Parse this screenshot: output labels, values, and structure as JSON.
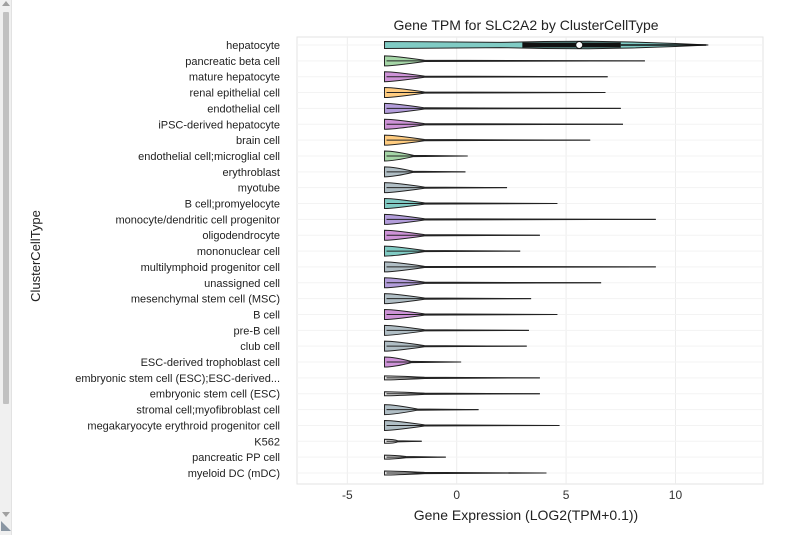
{
  "chart_data": {
    "type": "violin",
    "title": "Gene TPM for SLC2A2 by ClusterCellType",
    "xlabel": "Gene Expression (LOG2(TPM+0.1))",
    "ylabel": "ClusterCellType",
    "xlim": [
      -7.3,
      14
    ],
    "xticks": [
      -5,
      0,
      5,
      10
    ],
    "grid": true,
    "categories": [
      "hepatocyte",
      "pancreatic beta cell",
      "mature hepatocyte",
      "renal epithelial cell",
      "endothelial cell",
      "iPSC-derived hepatocyte",
      "brain cell",
      "endothelial cell;microglial cell",
      "erythroblast",
      "myotube",
      "B cell;promyelocyte",
      "monocyte/dendritic cell progenitor",
      "oligodendrocyte",
      "mononuclear cell",
      "multilymphoid progenitor cell",
      "unassigned cell",
      "mesenchymal stem cell (MSC)",
      "B cell",
      "pre-B cell",
      "club cell",
      "ESC-derived trophoblast cell",
      "embryonic stem cell (ESC);ESC-derived...",
      "embryonic stem cell (ESC)",
      "stromal cell;myofibroblast cell",
      "megakaryocyte erythroid progenitor cell",
      "K562",
      "pancreatic PP cell",
      "myeloid DC (mDC)"
    ],
    "series": [
      {
        "min": -3.3,
        "max": 11.5,
        "median": 5.6,
        "q1": 3.0,
        "q3": 7.5,
        "color": "#80cbc4"
      },
      {
        "min": -3.3,
        "max": 8.6,
        "color": "#a5d6a7"
      },
      {
        "min": -3.3,
        "max": 6.9,
        "color": "#ce93d8"
      },
      {
        "min": -3.3,
        "max": 6.8,
        "color": "#ffcc80"
      },
      {
        "min": -3.3,
        "max": 7.5,
        "color": "#b39ddb"
      },
      {
        "min": -3.3,
        "max": 7.6,
        "color": "#ce93d8"
      },
      {
        "min": -3.3,
        "max": 6.1,
        "color": "#ffcc80"
      },
      {
        "min": -3.3,
        "max": 0.5,
        "color": "#a5d6a7"
      },
      {
        "min": -3.3,
        "max": 0.4,
        "color": "#b0bec5"
      },
      {
        "min": -3.3,
        "max": 2.3,
        "color": "#b0bec5"
      },
      {
        "min": -3.3,
        "max": 4.6,
        "color": "#80cbc4"
      },
      {
        "min": -3.3,
        "max": 9.1,
        "color": "#b39ddb"
      },
      {
        "min": -3.3,
        "max": 3.8,
        "color": "#ce93d8"
      },
      {
        "min": -3.3,
        "max": 2.9,
        "color": "#80cbc4"
      },
      {
        "min": -3.3,
        "max": 9.1,
        "color": "#b0bec5"
      },
      {
        "min": -3.3,
        "max": 6.6,
        "color": "#b39ddb"
      },
      {
        "min": -3.3,
        "max": 3.4,
        "color": "#b0bec5"
      },
      {
        "min": -3.3,
        "max": 4.6,
        "color": "#ce93d8"
      },
      {
        "min": -3.3,
        "max": 3.3,
        "color": "#b0bec5"
      },
      {
        "min": -3.3,
        "max": 3.2,
        "color": "#b0bec5"
      },
      {
        "min": -3.3,
        "max": 0.2,
        "color": "#ce93d8"
      },
      {
        "min": -3.3,
        "max": 3.8,
        "color": "#e0e0e0"
      },
      {
        "min": -3.3,
        "max": 3.8,
        "color": "#e0e0e0"
      },
      {
        "min": -3.3,
        "max": 1.0,
        "color": "#b0bec5"
      },
      {
        "min": -3.3,
        "max": 4.7,
        "color": "#b0bec5"
      },
      {
        "min": -3.3,
        "max": -1.6,
        "color": "#e0e0e0"
      },
      {
        "min": -3.3,
        "max": -0.5,
        "color": "#e0e0e0"
      },
      {
        "min": -3.3,
        "max": 4.1,
        "color": "#e0e0e0"
      }
    ]
  }
}
